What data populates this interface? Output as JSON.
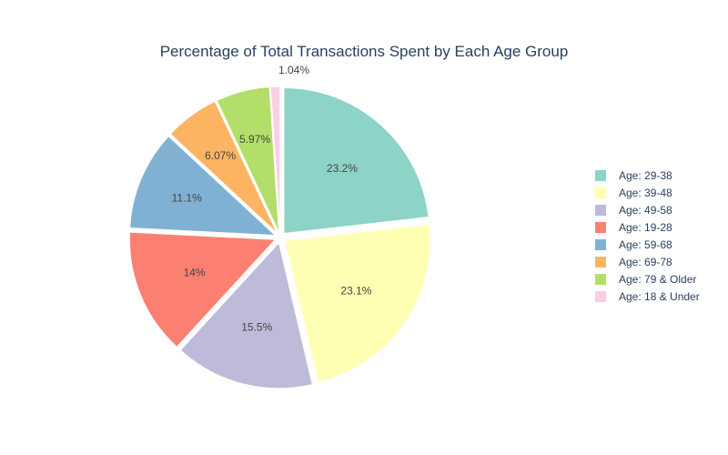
{
  "chart_data": {
    "type": "pie",
    "title": "Percentage of Total Transactions Spent by Each Age Group",
    "slices": [
      {
        "label": "Age: 29-38",
        "value": 23.2,
        "display": "23.2%",
        "color": "#8dd3c7"
      },
      {
        "label": "Age: 39-48",
        "value": 23.1,
        "display": "23.1%",
        "color": "#ffffb3"
      },
      {
        "label": "Age: 49-58",
        "value": 15.5,
        "display": "15.5%",
        "color": "#bebada"
      },
      {
        "label": "Age: 19-28",
        "value": 14.0,
        "display": "14%",
        "color": "#fb8072"
      },
      {
        "label": "Age: 59-68",
        "value": 11.1,
        "display": "11.1%",
        "color": "#80b1d3"
      },
      {
        "label": "Age: 69-78",
        "value": 6.07,
        "display": "6.07%",
        "color": "#fdb462"
      },
      {
        "label": "Age: 79 & Older",
        "value": 5.97,
        "display": "5.97%",
        "color": "#b3de69"
      },
      {
        "label": "Age: 18 & Under",
        "value": 1.04,
        "display": "1.04%",
        "color": "#fccde5"
      }
    ],
    "direction": "clockwise",
    "legend_position": "right"
  }
}
